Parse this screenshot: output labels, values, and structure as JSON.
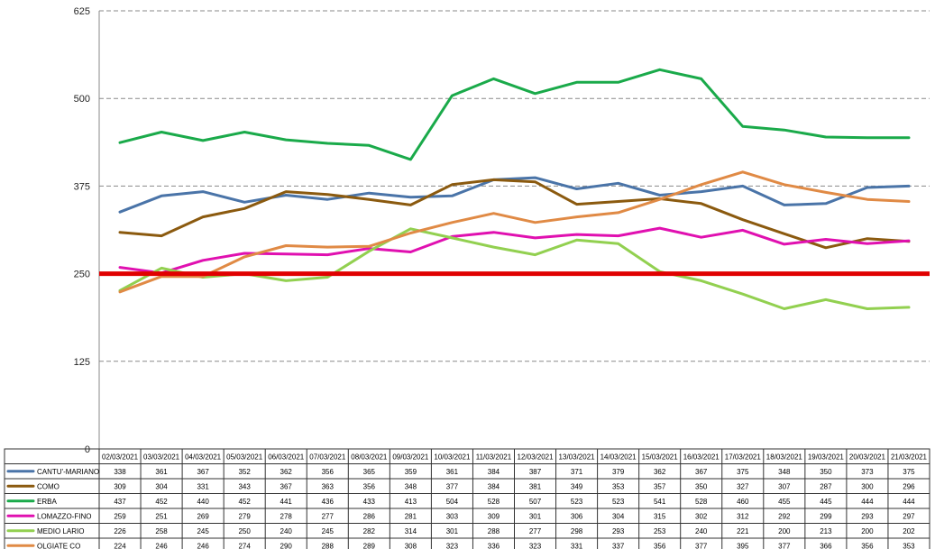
{
  "chart_data": {
    "type": "line",
    "title": "",
    "xlabel": "",
    "ylabel": "",
    "ylim": [
      0,
      625
    ],
    "yticks": [
      0,
      125,
      250,
      375,
      500,
      625
    ],
    "grid": true,
    "legend": "table-below",
    "categories": [
      "02/03/2021",
      "03/03/2021",
      "04/03/2021",
      "05/03/2021",
      "06/03/2021",
      "07/03/2021",
      "08/03/2021",
      "09/03/2021",
      "10/03/2021",
      "11/03/2021",
      "12/03/2021",
      "13/03/2021",
      "14/03/2021",
      "15/03/2021",
      "16/03/2021",
      "17/03/2021",
      "18/03/2021",
      "19/03/2021",
      "20/03/2021",
      "21/03/2021"
    ],
    "threshold": {
      "value": 250,
      "color": "#e00000"
    },
    "series": [
      {
        "name": "CANTU'-MARIANO",
        "color": "#4a74a8",
        "values": [
          338,
          361,
          367,
          352,
          362,
          356,
          365,
          359,
          361,
          384,
          387,
          371,
          379,
          362,
          367,
          375,
          348,
          350,
          373,
          375
        ]
      },
      {
        "name": "COMO",
        "color": "#8b5a0f",
        "values": [
          309,
          304,
          331,
          343,
          367,
          363,
          356,
          348,
          377,
          384,
          381,
          349,
          353,
          357,
          350,
          327,
          307,
          287,
          300,
          296
        ]
      },
      {
        "name": "ERBA",
        "color": "#1aaa4a",
        "values": [
          437,
          452,
          440,
          452,
          441,
          436,
          433,
          413,
          504,
          528,
          507,
          523,
          523,
          541,
          528,
          460,
          455,
          445,
          444,
          444
        ]
      },
      {
        "name": "LOMAZZO-FINO",
        "color": "#e010b0",
        "values": [
          259,
          251,
          269,
          279,
          278,
          277,
          286,
          281,
          303,
          309,
          301,
          306,
          304,
          315,
          302,
          312,
          292,
          299,
          293,
          297
        ]
      },
      {
        "name": "MEDIO LARIO",
        "color": "#92d050",
        "values": [
          226,
          258,
          245,
          250,
          240,
          245,
          282,
          314,
          301,
          288,
          277,
          298,
          293,
          253,
          240,
          221,
          200,
          213,
          200,
          202
        ]
      },
      {
        "name": "OLGIATE CO",
        "color": "#e08a45",
        "values": [
          224,
          246,
          246,
          274,
          290,
          288,
          289,
          308,
          323,
          336,
          323,
          331,
          337,
          356,
          377,
          395,
          377,
          366,
          356,
          353
        ]
      }
    ]
  }
}
